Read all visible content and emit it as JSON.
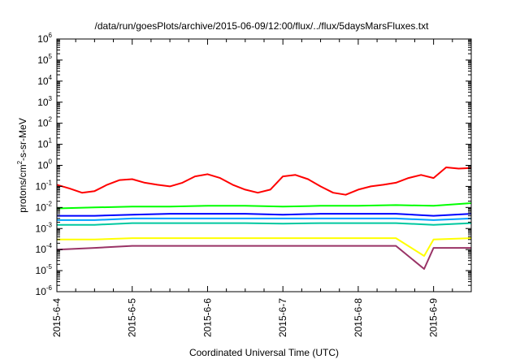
{
  "chart_data": {
    "type": "line",
    "title": "/data/run/goesPlots/archive/2015-06-09/12:00/flux/../flux/5daysMarsFluxes.txt",
    "xlabel": "Coordinated Universal Time (UTC)",
    "ylabel": "protons/cm²-s-sr-MeV",
    "ylabel_parts": [
      "protons/cm",
      "2",
      "-s-sr-MeV"
    ],
    "y_scale": "log",
    "ylim": [
      1e-06,
      1000000.0
    ],
    "y_ticks": [
      {
        "exp": "-6",
        "value": 1e-06
      },
      {
        "exp": "-5",
        "value": 1e-05
      },
      {
        "exp": "-4",
        "value": 0.0001
      },
      {
        "exp": "-3",
        "value": 0.001
      },
      {
        "exp": "-2",
        "value": 0.01
      },
      {
        "exp": "-1",
        "value": 0.1
      },
      {
        "exp": "0",
        "value": 1
      },
      {
        "exp": "1",
        "value": 10
      },
      {
        "exp": "2",
        "value": 100
      },
      {
        "exp": "3",
        "value": 1000
      },
      {
        "exp": "4",
        "value": 10000
      },
      {
        "exp": "5",
        "value": 100000
      },
      {
        "exp": "6",
        "value": 1000000
      }
    ],
    "x_ticks": [
      "2015-6-4",
      "2015-6-5",
      "2015-6-6",
      "2015-6-7",
      "2015-6-8",
      "2015-6-9"
    ],
    "xlim": [
      "2015-06-04T00:00",
      "2015-06-09T12:00"
    ],
    "grid": false,
    "legend": "none",
    "series": [
      {
        "color": "#ff0000",
        "x": [
          "2015-06-04T00:00",
          "2015-06-04T04:00",
          "2015-06-04T08:00",
          "2015-06-04T12:00",
          "2015-06-04T16:00",
          "2015-06-04T20:00",
          "2015-06-05T00:00",
          "2015-06-05T04:00",
          "2015-06-05T08:00",
          "2015-06-05T12:00",
          "2015-06-05T16:00",
          "2015-06-05T20:00",
          "2015-06-06T00:00",
          "2015-06-06T04:00",
          "2015-06-06T08:00",
          "2015-06-06T12:00",
          "2015-06-06T16:00",
          "2015-06-06T20:00",
          "2015-06-07T00:00",
          "2015-06-07T04:00",
          "2015-06-07T08:00",
          "2015-06-07T12:00",
          "2015-06-07T16:00",
          "2015-06-07T20:00",
          "2015-06-08T00:00",
          "2015-06-08T04:00",
          "2015-06-08T08:00",
          "2015-06-08T12:00",
          "2015-06-08T16:00",
          "2015-06-08T20:00",
          "2015-06-09T00:00",
          "2015-06-09T04:00",
          "2015-06-09T08:00",
          "2015-06-09T12:00"
        ],
        "values": [
          0.12,
          0.08,
          0.05,
          0.06,
          0.12,
          0.2,
          0.22,
          0.15,
          0.12,
          0.1,
          0.15,
          0.3,
          0.38,
          0.25,
          0.12,
          0.07,
          0.05,
          0.07,
          0.3,
          0.35,
          0.22,
          0.1,
          0.05,
          0.04,
          0.07,
          0.1,
          0.12,
          0.15,
          0.25,
          0.35,
          0.25,
          0.8,
          0.7,
          0.75
        ]
      },
      {
        "color": "#00ff00",
        "x": [
          "2015-06-04T00:00",
          "2015-06-04T12:00",
          "2015-06-05T00:00",
          "2015-06-05T12:00",
          "2015-06-06T00:00",
          "2015-06-06T12:00",
          "2015-06-07T00:00",
          "2015-06-07T12:00",
          "2015-06-08T00:00",
          "2015-06-08T12:00",
          "2015-06-09T00:00",
          "2015-06-09T12:00"
        ],
        "values": [
          0.009,
          0.01,
          0.011,
          0.011,
          0.012,
          0.012,
          0.011,
          0.012,
          0.012,
          0.013,
          0.012,
          0.016
        ]
      },
      {
        "color": "#0000ff",
        "x": [
          "2015-06-04T00:00",
          "2015-06-04T12:00",
          "2015-06-05T00:00",
          "2015-06-05T12:00",
          "2015-06-06T00:00",
          "2015-06-06T12:00",
          "2015-06-07T00:00",
          "2015-06-07T12:00",
          "2015-06-08T00:00",
          "2015-06-08T12:00",
          "2015-06-09T00:00",
          "2015-06-09T12:00"
        ],
        "values": [
          0.004,
          0.004,
          0.0045,
          0.005,
          0.005,
          0.005,
          0.0045,
          0.005,
          0.005,
          0.005,
          0.004,
          0.005
        ]
      },
      {
        "color": "#00a0ff",
        "x": [
          "2015-06-04T00:00",
          "2015-06-04T12:00",
          "2015-06-05T00:00",
          "2015-06-05T12:00",
          "2015-06-06T00:00",
          "2015-06-06T12:00",
          "2015-06-07T00:00",
          "2015-06-07T12:00",
          "2015-06-08T00:00",
          "2015-06-08T12:00",
          "2015-06-09T00:00",
          "2015-06-09T12:00"
        ],
        "values": [
          0.0025,
          0.0025,
          0.003,
          0.003,
          0.003,
          0.003,
          0.003,
          0.003,
          0.003,
          0.003,
          0.0025,
          0.003
        ]
      },
      {
        "color": "#00c8a0",
        "x": [
          "2015-06-04T00:00",
          "2015-06-04T12:00",
          "2015-06-05T00:00",
          "2015-06-05T12:00",
          "2015-06-06T00:00",
          "2015-06-06T12:00",
          "2015-06-07T00:00",
          "2015-06-07T12:00",
          "2015-06-08T00:00",
          "2015-06-08T12:00",
          "2015-06-09T00:00",
          "2015-06-09T12:00"
        ],
        "values": [
          0.0015,
          0.0015,
          0.0018,
          0.0018,
          0.0018,
          0.0018,
          0.0017,
          0.0018,
          0.0018,
          0.0018,
          0.0015,
          0.0018
        ]
      },
      {
        "color": "#ffff00",
        "x": [
          "2015-06-04T00:00",
          "2015-06-04T12:00",
          "2015-06-05T00:00",
          "2015-06-05T12:00",
          "2015-06-06T00:00",
          "2015-06-06T12:00",
          "2015-06-07T00:00",
          "2015-06-07T12:00",
          "2015-06-08T00:00",
          "2015-06-08T12:00",
          "2015-06-08T21:00",
          "2015-06-09T00:00",
          "2015-06-09T12:00"
        ],
        "values": [
          0.0003,
          0.0003,
          0.00035,
          0.00035,
          0.00035,
          0.00035,
          0.00035,
          0.00035,
          0.00035,
          0.00035,
          5e-05,
          0.0003,
          0.00035
        ]
      },
      {
        "color": "#993366",
        "x": [
          "2015-06-04T00:00",
          "2015-06-04T12:00",
          "2015-06-05T00:00",
          "2015-06-05T12:00",
          "2015-06-06T00:00",
          "2015-06-06T12:00",
          "2015-06-07T00:00",
          "2015-06-07T12:00",
          "2015-06-08T00:00",
          "2015-06-08T12:00",
          "2015-06-08T21:00",
          "2015-06-09T00:00",
          "2015-06-09T12:00"
        ],
        "values": [
          0.0001,
          0.00012,
          0.00015,
          0.00015,
          0.00015,
          0.00015,
          0.00015,
          0.00015,
          0.00015,
          0.00015,
          1.2e-05,
          0.00012,
          0.00012
        ]
      }
    ]
  }
}
